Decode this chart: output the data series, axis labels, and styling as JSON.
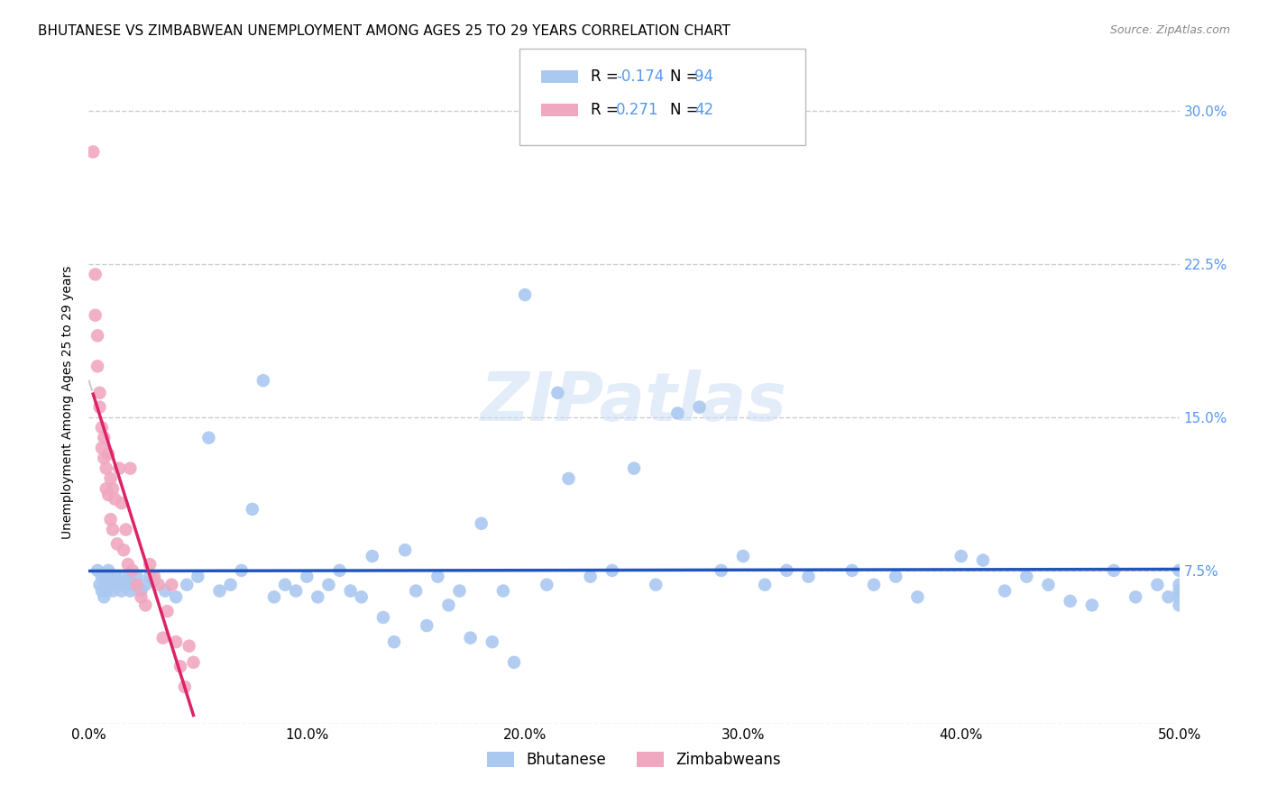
{
  "title": "BHUTANESE VS ZIMBABWEAN UNEMPLOYMENT AMONG AGES 25 TO 29 YEARS CORRELATION CHART",
  "source": "Source: ZipAtlas.com",
  "ylabel": "Unemployment Among Ages 25 to 29 years",
  "xlim": [
    0.0,
    0.5
  ],
  "ylim": [
    0.0,
    0.315
  ],
  "xticks": [
    0.0,
    0.1,
    0.2,
    0.3,
    0.4,
    0.5
  ],
  "xticklabels": [
    "0.0%",
    "10.0%",
    "20.0%",
    "30.0%",
    "40.0%",
    "50.0%"
  ],
  "yticks": [
    0.0,
    0.075,
    0.15,
    0.225,
    0.3
  ],
  "yticklabels": [
    "",
    "7.5%",
    "15.0%",
    "22.5%",
    "30.0%"
  ],
  "bhutanese_color": "#aac8f0",
  "zimbabwean_color": "#f0a8c0",
  "trend_bhutanese_color": "#2255bb",
  "trend_zimbabwean_color": "#dd2266",
  "trend_dashed_color": "#cccccc",
  "watermark": "ZIPatlas",
  "right_tick_color": "#5599ee",
  "background_color": "#ffffff",
  "grid_color": "#cccccc",
  "title_fontsize": 11,
  "tick_fontsize": 11,
  "bhutanese_x": [
    0.004,
    0.005,
    0.006,
    0.006,
    0.007,
    0.007,
    0.008,
    0.008,
    0.009,
    0.009,
    0.01,
    0.011,
    0.012,
    0.013,
    0.014,
    0.015,
    0.016,
    0.017,
    0.018,
    0.019,
    0.02,
    0.022,
    0.024,
    0.026,
    0.028,
    0.03,
    0.035,
    0.04,
    0.045,
    0.05,
    0.055,
    0.06,
    0.065,
    0.07,
    0.075,
    0.08,
    0.085,
    0.09,
    0.095,
    0.1,
    0.105,
    0.11,
    0.115,
    0.12,
    0.125,
    0.13,
    0.135,
    0.14,
    0.145,
    0.15,
    0.155,
    0.16,
    0.165,
    0.17,
    0.175,
    0.18,
    0.185,
    0.19,
    0.195,
    0.2,
    0.21,
    0.215,
    0.22,
    0.23,
    0.24,
    0.25,
    0.26,
    0.27,
    0.28,
    0.29,
    0.3,
    0.31,
    0.32,
    0.33,
    0.35,
    0.36,
    0.37,
    0.38,
    0.4,
    0.41,
    0.42,
    0.43,
    0.44,
    0.45,
    0.46,
    0.47,
    0.48,
    0.49,
    0.495,
    0.5,
    0.5,
    0.5,
    0.5,
    0.5
  ],
  "bhutanese_y": [
    0.075,
    0.068,
    0.072,
    0.065,
    0.07,
    0.062,
    0.065,
    0.068,
    0.072,
    0.075,
    0.068,
    0.065,
    0.072,
    0.07,
    0.068,
    0.065,
    0.072,
    0.068,
    0.07,
    0.065,
    0.068,
    0.072,
    0.065,
    0.068,
    0.072,
    0.07,
    0.065,
    0.062,
    0.068,
    0.072,
    0.14,
    0.065,
    0.068,
    0.075,
    0.105,
    0.168,
    0.062,
    0.068,
    0.065,
    0.072,
    0.062,
    0.068,
    0.075,
    0.065,
    0.062,
    0.082,
    0.052,
    0.04,
    0.085,
    0.065,
    0.048,
    0.072,
    0.058,
    0.065,
    0.042,
    0.098,
    0.04,
    0.065,
    0.03,
    0.21,
    0.068,
    0.162,
    0.12,
    0.072,
    0.075,
    0.125,
    0.068,
    0.152,
    0.155,
    0.075,
    0.082,
    0.068,
    0.075,
    0.072,
    0.075,
    0.068,
    0.072,
    0.062,
    0.082,
    0.08,
    0.065,
    0.072,
    0.068,
    0.06,
    0.058,
    0.075,
    0.062,
    0.068,
    0.062,
    0.075,
    0.068,
    0.062,
    0.058,
    0.065
  ],
  "zimbabwean_x": [
    0.002,
    0.003,
    0.003,
    0.004,
    0.004,
    0.005,
    0.005,
    0.006,
    0.006,
    0.007,
    0.007,
    0.008,
    0.008,
    0.009,
    0.009,
    0.01,
    0.01,
    0.011,
    0.011,
    0.012,
    0.013,
    0.014,
    0.015,
    0.016,
    0.017,
    0.018,
    0.019,
    0.02,
    0.022,
    0.024,
    0.026,
    0.028,
    0.03,
    0.032,
    0.034,
    0.036,
    0.038,
    0.04,
    0.042,
    0.044,
    0.046,
    0.048
  ],
  "zimbabwean_y": [
    0.28,
    0.22,
    0.2,
    0.19,
    0.175,
    0.162,
    0.155,
    0.145,
    0.135,
    0.14,
    0.13,
    0.125,
    0.115,
    0.132,
    0.112,
    0.12,
    0.1,
    0.115,
    0.095,
    0.11,
    0.088,
    0.125,
    0.108,
    0.085,
    0.095,
    0.078,
    0.125,
    0.075,
    0.068,
    0.062,
    0.058,
    0.078,
    0.072,
    0.068,
    0.042,
    0.055,
    0.068,
    0.04,
    0.028,
    0.018,
    0.038,
    0.03
  ]
}
